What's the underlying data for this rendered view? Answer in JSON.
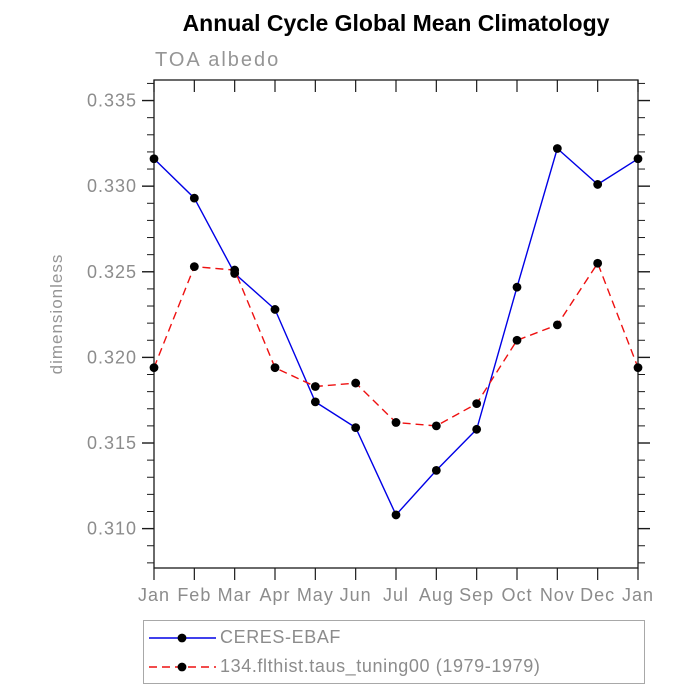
{
  "title": "Annual Cycle Global Mean Climatology",
  "subtitle": "TOA albedo",
  "chart_data": {
    "type": "line",
    "title": "Annual Cycle Global Mean Climatology",
    "subtitle": "TOA albedo",
    "ylabel": "dimensionless",
    "xlabel": "",
    "categories": [
      "Jan",
      "Feb",
      "Mar",
      "Apr",
      "May",
      "Jun",
      "Jul",
      "Aug",
      "Sep",
      "Oct",
      "Nov",
      "Dec",
      "Jan"
    ],
    "series": [
      {
        "name": "CERES-EBAF",
        "color": "#0000e6",
        "line": "solid",
        "marker": "filled-circle",
        "values": [
          0.3316,
          0.3293,
          0.3249,
          0.3228,
          0.3174,
          0.3159,
          0.3108,
          0.3134,
          0.3158,
          0.3241,
          0.3322,
          0.3301,
          0.3316
        ]
      },
      {
        "name": "134.flthist.taus_tuning00 (1979-1979)",
        "color": "#ee1111",
        "line": "dashed",
        "marker": "filled-circle",
        "values": [
          0.3194,
          0.3253,
          0.3251,
          0.3194,
          0.3183,
          0.3185,
          0.3162,
          0.316,
          0.3173,
          0.321,
          0.3219,
          0.3255,
          0.3194
        ]
      }
    ],
    "ylim": [
      0.3077,
      0.3362
    ],
    "yticks_major": [
      0.31,
      0.315,
      0.32,
      0.325,
      0.33,
      0.335
    ],
    "ytick_labels": [
      "0.310",
      "0.315",
      "0.320",
      "0.325",
      "0.330",
      "0.335"
    ],
    "ytick_minor_step": 0.001,
    "grid": false,
    "legend_position": "bottom-left",
    "marker_color": "#000000",
    "axis_color": "#1a1a1a"
  }
}
